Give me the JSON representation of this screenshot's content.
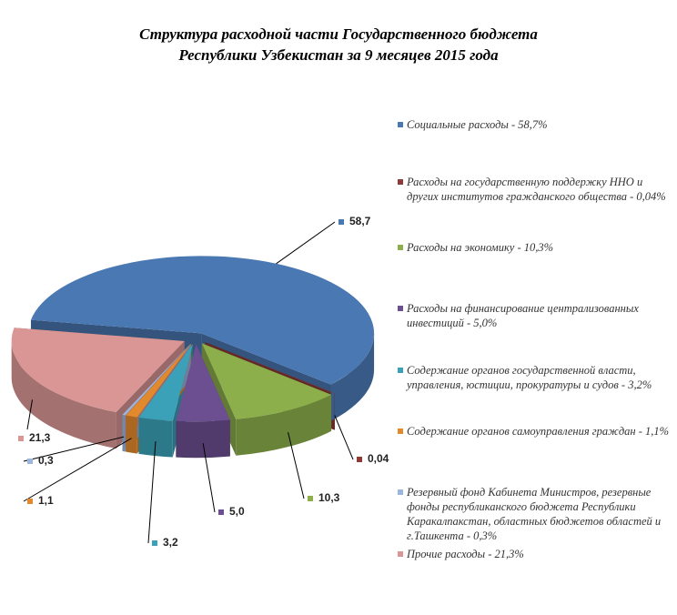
{
  "chart_data": {
    "type": "pie3d",
    "title": "Структура расходной части Государственного бюджета\nРеспублики Узбекистан за 9 месяцев 2015 года",
    "categories": [
      "Социальные расходы - 58,7%",
      "Расходы на государственную поддержку ННО и других институтов гражданского общества - 0,04%",
      "Расходы на экономику - 10,3%",
      "Расходы на финансирование централизованных инвестиций - 5,0%",
      "Содержание органов государственной власти, управления, юстиции, прокуратуры и судов - 3,2%",
      "Содержание органов самоуправления граждан - 1,1%",
      "Резервный фонд Кабинета Министров, резервные фонды республиканского бюджета Республики Каракалпакстан, областных бюджетов областей и г.Ташкента - 0,3%",
      "Прочие расходы - 21,3%"
    ],
    "values": [
      58.7,
      0.04,
      10.3,
      5.0,
      3.2,
      1.1,
      0.3,
      21.3
    ],
    "value_labels": [
      "58,7",
      "0,04",
      "10,3",
      "5,0",
      "3,2",
      "1,1",
      "0,3",
      "21,3"
    ],
    "colors": [
      "#4a78b2",
      "#8e3b38",
      "#8cae4b",
      "#6c4f91",
      "#3aa1b8",
      "#e2892d",
      "#9ab6da",
      "#d99694"
    ],
    "legend": "right"
  }
}
